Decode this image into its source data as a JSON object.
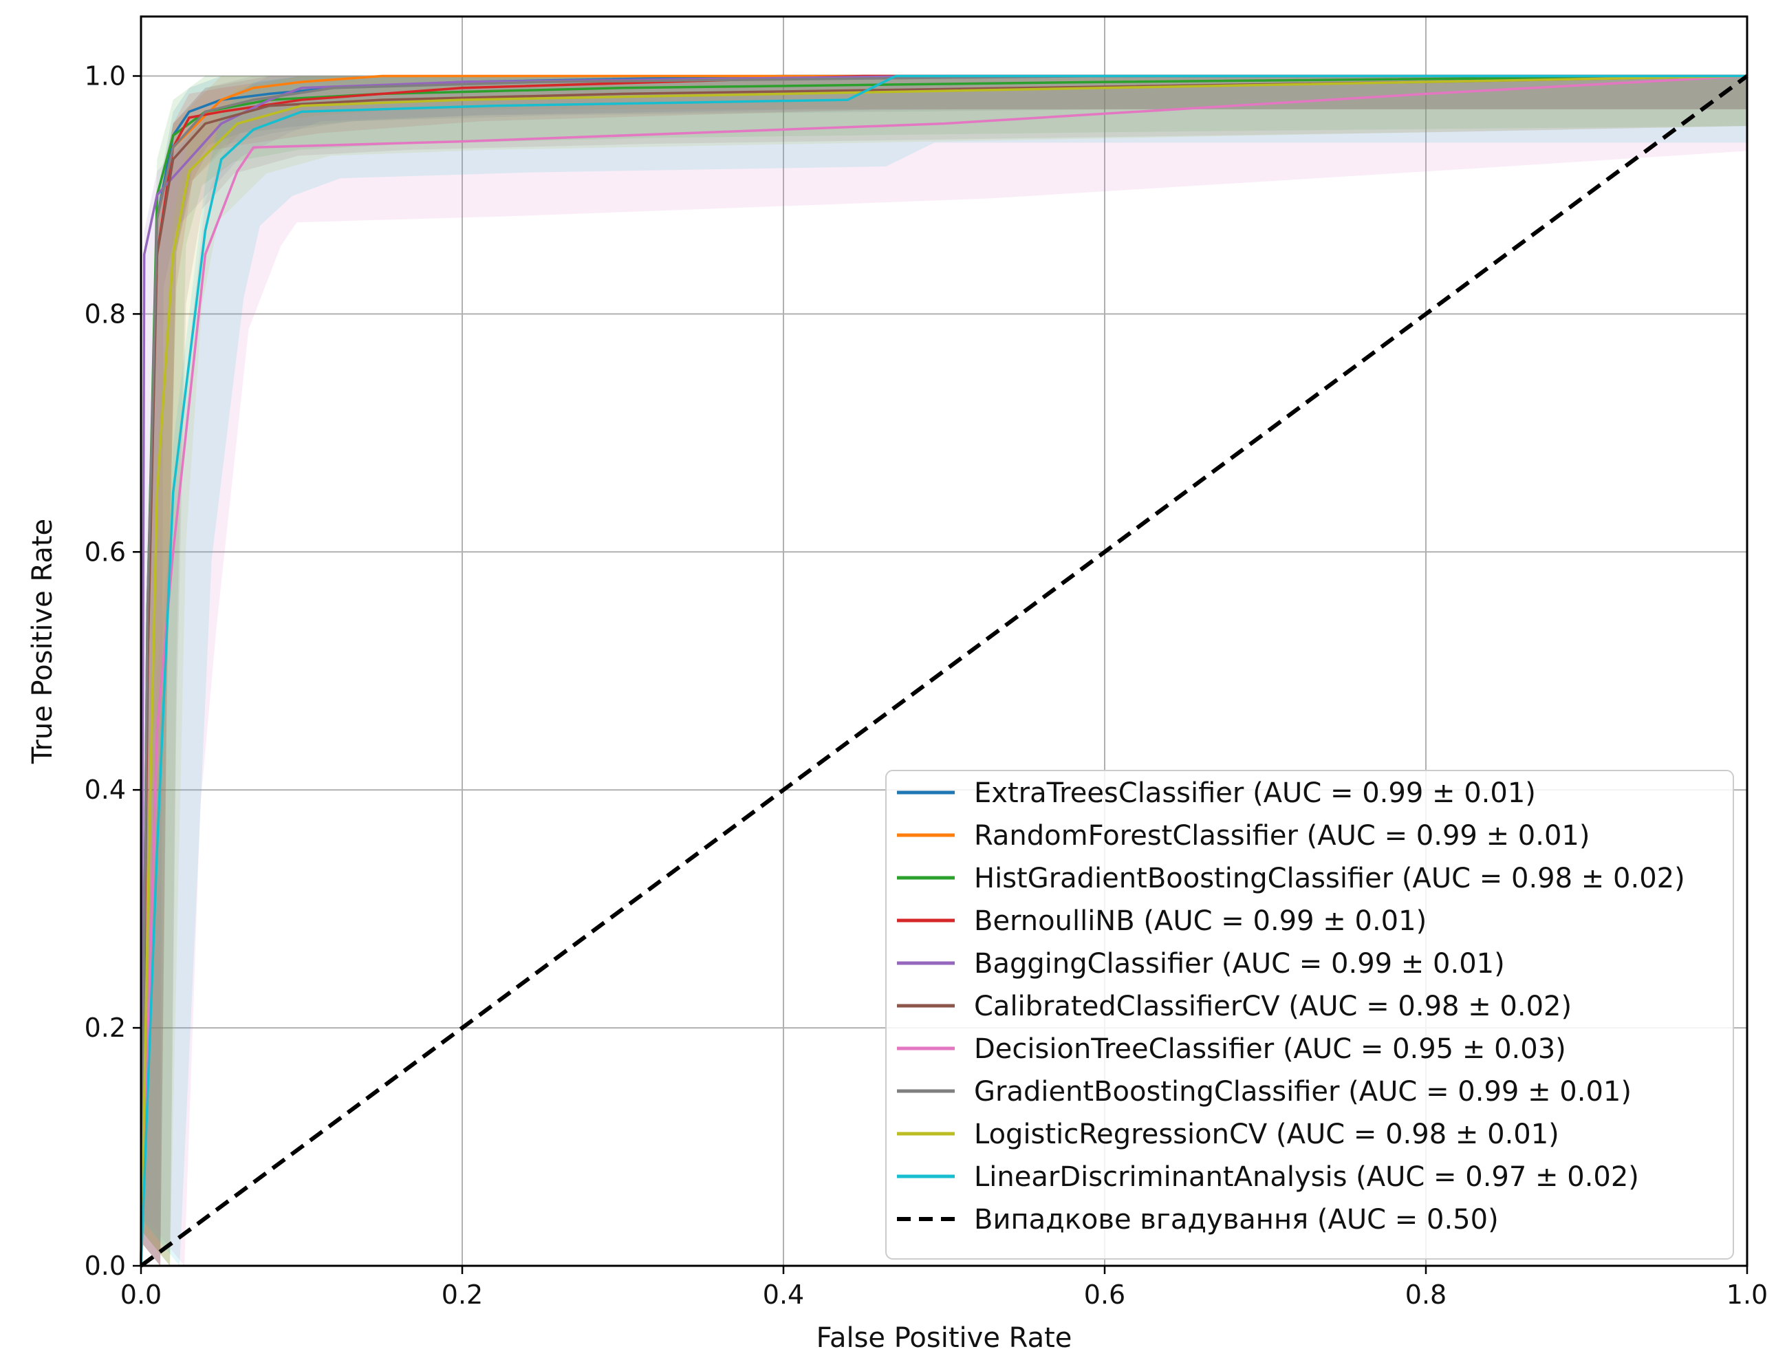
{
  "chart_data": {
    "type": "line",
    "title": "",
    "xlabel": "False Positive Rate",
    "ylabel": "True Positive Rate",
    "xlim": [
      0.0,
      1.0
    ],
    "ylim": [
      0.0,
      1.05
    ],
    "x_ticks": [
      "0.0",
      "0.2",
      "0.4",
      "0.6",
      "0.8",
      "1.0"
    ],
    "y_ticks": [
      "0.0",
      "0.2",
      "0.4",
      "0.6",
      "0.8",
      "1.0"
    ],
    "grid": true,
    "legend_position": "lower-right",
    "series": [
      {
        "name": "ExtraTreesClassifier (AUC = 0.99 ± 0.01)",
        "color": "#1f77b4",
        "x": [
          0,
          0.004,
          0.01,
          0.02,
          0.03,
          0.05,
          0.08,
          0.12,
          0.2,
          0.4,
          1.0
        ],
        "y": [
          0,
          0.5,
          0.88,
          0.95,
          0.97,
          0.98,
          0.985,
          0.99,
          0.995,
          1.0,
          1.0
        ],
        "band": 0.02
      },
      {
        "name": "RandomForestClassifier (AUC = 0.99 ± 0.01)",
        "color": "#ff7f0e",
        "x": [
          0,
          0.004,
          0.01,
          0.02,
          0.035,
          0.05,
          0.07,
          0.1,
          0.15,
          0.3,
          1.0
        ],
        "y": [
          0,
          0.5,
          0.88,
          0.94,
          0.96,
          0.98,
          0.99,
          0.995,
          1.0,
          1.0,
          1.0
        ],
        "band": 0.02
      },
      {
        "name": "HistGradientBoostingClassifier (AUC = 0.98 ± 0.02)",
        "color": "#2ca02c",
        "x": [
          0,
          0.004,
          0.01,
          0.02,
          0.04,
          0.08,
          0.15,
          0.3,
          0.6,
          1.0
        ],
        "y": [
          0,
          0.55,
          0.9,
          0.95,
          0.97,
          0.98,
          0.985,
          0.99,
          0.995,
          1.0
        ],
        "band": 0.03
      },
      {
        "name": "BernoulliNB (AUC = 0.99 ± 0.01)",
        "color": "#d62728",
        "x": [
          0,
          0.005,
          0.01,
          0.02,
          0.03,
          0.05,
          0.1,
          0.2,
          0.45,
          1.0
        ],
        "y": [
          0,
          0.6,
          0.85,
          0.94,
          0.965,
          0.97,
          0.98,
          0.99,
          1.0,
          1.0
        ],
        "band": 0.02
      },
      {
        "name": "BaggingClassifier (AUC = 0.99 ± 0.01)",
        "color": "#9467bd",
        "x": [
          0,
          0.002,
          0.01,
          0.03,
          0.05,
          0.08,
          0.1,
          0.2,
          0.5,
          1.0
        ],
        "y": [
          0,
          0.85,
          0.9,
          0.93,
          0.96,
          0.98,
          0.99,
          0.995,
          1.0,
          1.0
        ],
        "band": 0.02
      },
      {
        "name": "CalibratedClassifierCV (AUC = 0.98 ± 0.02)",
        "color": "#8c564b",
        "x": [
          0,
          0.004,
          0.01,
          0.02,
          0.04,
          0.08,
          0.15,
          0.3,
          0.8,
          1.0
        ],
        "y": [
          0,
          0.5,
          0.85,
          0.93,
          0.96,
          0.975,
          0.98,
          0.985,
          0.995,
          1.0
        ],
        "band": 0.03
      },
      {
        "name": "DecisionTreeClassifier (AUC = 0.95 ± 0.03)",
        "color": "#e377c2",
        "x": [
          0,
          0.01,
          0.02,
          0.04,
          0.06,
          0.07,
          0.2,
          0.5,
          0.8,
          1.0
        ],
        "y": [
          0,
          0.45,
          0.6,
          0.85,
          0.92,
          0.94,
          0.945,
          0.96,
          0.985,
          1.0
        ],
        "band": 0.045
      },
      {
        "name": "GradientBoostingClassifier (AUC = 0.99 ± 0.01)",
        "color": "#7f7f7f",
        "x": [
          0,
          0.004,
          0.01,
          0.02,
          0.04,
          0.07,
          0.12,
          0.25,
          0.6,
          1.0
        ],
        "y": [
          0,
          0.55,
          0.88,
          0.94,
          0.97,
          0.98,
          0.99,
          0.995,
          1.0,
          1.0
        ],
        "band": 0.02
      },
      {
        "name": "LogisticRegressionCV (AUC = 0.98 ± 0.01)",
        "color": "#bcbd22",
        "x": [
          0,
          0.005,
          0.01,
          0.02,
          0.03,
          0.06,
          0.1,
          0.2,
          0.6,
          1.0
        ],
        "y": [
          0,
          0.35,
          0.65,
          0.85,
          0.92,
          0.96,
          0.975,
          0.98,
          0.99,
          1.0
        ],
        "band": 0.03
      },
      {
        "name": "LinearDiscriminantAnalysis (AUC = 0.97 ± 0.02)",
        "color": "#17becf",
        "x": [
          0,
          0.01,
          0.02,
          0.04,
          0.05,
          0.07,
          0.1,
          0.22,
          0.44,
          0.47,
          1.0
        ],
        "y": [
          0,
          0.35,
          0.65,
          0.87,
          0.93,
          0.955,
          0.97,
          0.975,
          0.98,
          1.0,
          1.0
        ],
        "band": 0.04
      },
      {
        "name": "Випадкове вгадування (AUC = 0.50)",
        "color": "#000000",
        "dashed": true,
        "x": [
          0,
          1.0
        ],
        "y": [
          0,
          1.0
        ]
      }
    ]
  }
}
